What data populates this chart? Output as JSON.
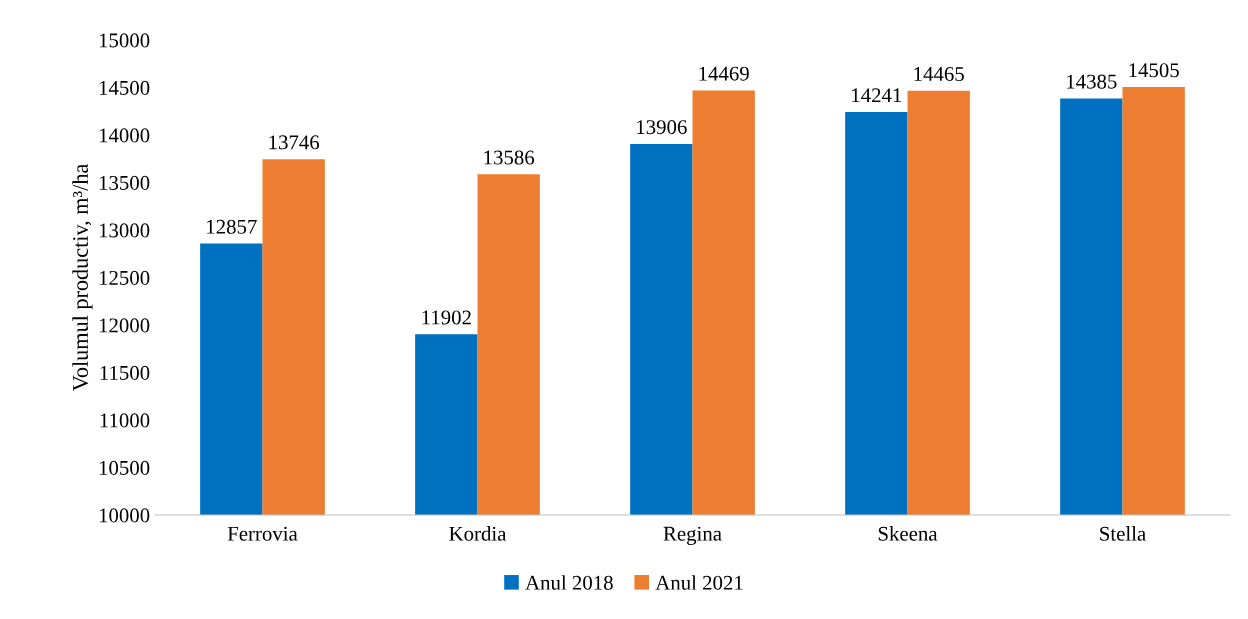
{
  "chart_data": {
    "type": "bar",
    "ylabel": "Volumul productiv, m³/ha",
    "categories": [
      "Ferrovia",
      "Kordia",
      "Regina",
      "Skeena",
      "Stella"
    ],
    "series": [
      {
        "name": "Anul 2018",
        "color": "#0070c0",
        "values": [
          12857,
          11902,
          13906,
          14241,
          14385
        ]
      },
      {
        "name": "Anul 2021",
        "color": "#ed7d31",
        "values": [
          13746,
          13586,
          14469,
          14465,
          14505
        ]
      }
    ],
    "ylim": [
      10000,
      15000
    ],
    "yticks": [
      10000,
      10500,
      11000,
      11500,
      12000,
      12500,
      13000,
      13500,
      14000,
      14500,
      15000
    ],
    "data_labels": true,
    "grid": false,
    "legend": "bottom"
  }
}
